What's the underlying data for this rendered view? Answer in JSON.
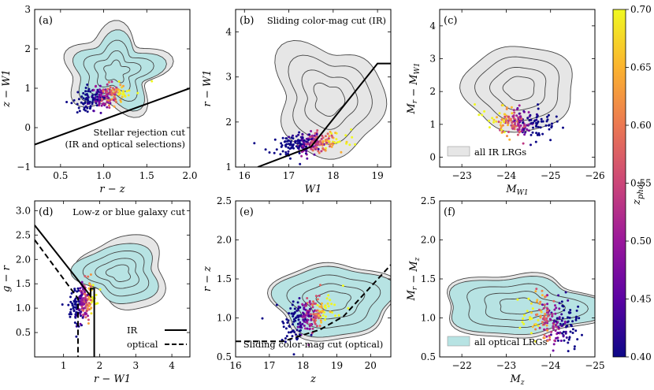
{
  "figure": {
    "colorbar": {
      "label": "z_phot",
      "label_main": "z",
      "label_sub": "phot",
      "range": [
        0.4,
        0.7
      ],
      "ticks": [
        "0.40",
        "0.45",
        "0.50",
        "0.55",
        "0.60",
        "0.65",
        "0.70"
      ],
      "colormap": "plasma",
      "stops": [
        "#0d0887",
        "#5b02a3",
        "#9a179b",
        "#cb4678",
        "#eb7852",
        "#fbb32f",
        "#f0f921"
      ]
    },
    "colors": {
      "ir_fill": "#e6e6e6",
      "optical_fill": "#b7e3e3",
      "contour": "#444444"
    }
  },
  "chart_data": [
    {
      "id": "a",
      "type": "scatter",
      "tag": "(a)",
      "xlabel": "r − z",
      "ylabel": "z − W1",
      "xlim": [
        0.2,
        2.0
      ],
      "ylim": [
        -1,
        3
      ],
      "xticks": [
        "0.5",
        "1.0",
        "1.5",
        "2.0"
      ],
      "yticks": [
        "−1",
        "0",
        "1",
        "2",
        "3"
      ],
      "annotation": [
        "Stellar rejection cut",
        "(IR and optical selections)"
      ],
      "cut_lines": [
        {
          "name": "stellar-rejection",
          "style": "solid",
          "x": [
            0.2,
            2.0
          ],
          "y": [
            -0.43,
            1.0
          ]
        }
      ],
      "ir_region": {
        "cx": 1.12,
        "cy": 1.45,
        "rx": 0.55,
        "ry": 1.05
      },
      "optical_region": {
        "cx": 1.14,
        "cy": 1.42,
        "rx": 0.47,
        "ry": 0.88
      },
      "points": {
        "n": 220,
        "cx": 1.0,
        "cy": 0.78,
        "sx": 0.16,
        "sy": 0.15,
        "xslope": 0.45,
        "yslope": 0.75,
        "zslope": 0.55
      }
    },
    {
      "id": "b",
      "type": "scatter",
      "tag": "(b)",
      "xlabel": "W1",
      "ylabel": "r − W1",
      "xlim": [
        15.8,
        19.3
      ],
      "ylim": [
        1.0,
        4.5
      ],
      "xticks": [
        "16",
        "17",
        "18",
        "19"
      ],
      "yticks": [
        "1",
        "2",
        "3",
        "4"
      ],
      "annotation": [
        "Sliding color-mag cut (IR)"
      ],
      "cut_lines": [
        {
          "name": "sliding-ir",
          "style": "solid",
          "x": [
            16.3,
            17.5,
            19.0,
            19.3
          ],
          "y": [
            1.0,
            1.45,
            3.3,
            3.3
          ]
        }
      ],
      "ir_region": {
        "cx": 17.9,
        "cy": 2.5,
        "rx": 1.25,
        "ry": 1.2
      },
      "optical_region": null,
      "points": {
        "n": 240,
        "cx": 17.5,
        "cy": 1.52,
        "sx": 0.38,
        "sy": 0.12,
        "xslope": 0.5,
        "yslope": 0.5,
        "zslope": 0.5
      }
    },
    {
      "id": "c",
      "type": "scatter",
      "tag": "(c)",
      "xlabel": "M_W1",
      "ylabel": "M_r − M_W1",
      "xlim": [
        -22.5,
        -26.0
      ],
      "ylim": [
        -0.3,
        4.5
      ],
      "xticks": [
        "−23",
        "−24",
        "−25",
        "−26"
      ],
      "yticks": [
        "0",
        "1",
        "2",
        "3",
        "4"
      ],
      "legend": "all IR LRGs",
      "cut_lines": [],
      "ir_region": {
        "cx": -24.3,
        "cy": 2.1,
        "rx": 1.25,
        "ry": 1.3
      },
      "optical_region": null,
      "points": {
        "n": 200,
        "cx": -24.3,
        "cy": 1.05,
        "sx": 0.35,
        "sy": 0.22,
        "xslope": 0.65,
        "yslope": 0.5,
        "zslope": 0.5
      }
    },
    {
      "id": "d",
      "type": "scatter",
      "tag": "(d)",
      "xlabel": "r − W1",
      "ylabel": "g − r",
      "xlim": [
        0.2,
        4.5
      ],
      "ylim": [
        0.0,
        3.2
      ],
      "xticks": [
        "1",
        "2",
        "3",
        "4"
      ],
      "yticks": [
        "0.5",
        "1.0",
        "1.5",
        "2.0",
        "2.5",
        "3.0"
      ],
      "annotation": [
        "Low-z or blue galaxy cut"
      ],
      "legend": [
        {
          "label": "IR",
          "style": "solid"
        },
        {
          "label": "optical",
          "style": "dashed"
        }
      ],
      "cut_lines": [
        {
          "name": "low-z-ir",
          "style": "solid",
          "x": [
            0.2,
            1.75,
            1.75,
            1.85,
            1.85
          ],
          "y": [
            2.7,
            1.25,
            1.4,
            1.4,
            0.0
          ]
        },
        {
          "name": "low-z-optical",
          "style": "dashed",
          "x": [
            0.2,
            1.4,
            1.4
          ],
          "y": [
            2.4,
            1.2,
            0.0
          ]
        }
      ],
      "ir_region": {
        "cx": 2.7,
        "cy": 1.75,
        "rx": 1.15,
        "ry": 0.75
      },
      "optical_region": {
        "cx": 2.55,
        "cy": 1.72,
        "rx": 1.1,
        "ry": 0.6
      },
      "points": {
        "n": 200,
        "cx": 1.55,
        "cy": 1.12,
        "sx": 0.18,
        "sy": 0.22,
        "xslope": 0.5,
        "yslope": 0.7,
        "zslope": 0.5
      }
    },
    {
      "id": "e",
      "type": "scatter",
      "tag": "(e)",
      "xlabel": "z",
      "ylabel": "r − z",
      "xlim": [
        16.0,
        20.6
      ],
      "ylim": [
        0.5,
        2.5
      ],
      "xticks": [
        "16",
        "17",
        "18",
        "19",
        "20"
      ],
      "yticks": [
        "0.5",
        "1.0",
        "1.5",
        "2.0",
        "2.5"
      ],
      "annotation": [
        "Sliding color-mag cut (optical)"
      ],
      "cut_lines": [
        {
          "name": "sliding-optical",
          "style": "dashed",
          "x": [
            16.0,
            17.4,
            18.5,
            19.2,
            20.6
          ],
          "y": [
            0.7,
            0.7,
            0.85,
            1.02,
            1.68
          ]
        }
      ],
      "ir_region": {
        "cx": 18.9,
        "cy": 1.22,
        "rx": 1.8,
        "ry": 0.5
      },
      "optical_region": {
        "cx": 18.9,
        "cy": 1.22,
        "rx": 1.7,
        "ry": 0.45
      },
      "points": {
        "n": 220,
        "cx": 18.15,
        "cy": 1.02,
        "sx": 0.35,
        "sy": 0.13,
        "xslope": 0.5,
        "yslope": 0.55,
        "zslope": 0.5
      }
    },
    {
      "id": "f",
      "type": "scatter",
      "tag": "(f)",
      "xlabel": "M_z",
      "ylabel": "M_r − M_z",
      "xlim": [
        -21.5,
        -25.0
      ],
      "ylim": [
        0.5,
        2.5
      ],
      "xticks": [
        "−22",
        "−23",
        "−24",
        "−25"
      ],
      "yticks": [
        "0.5",
        "1.0",
        "1.5",
        "2.0",
        "2.5"
      ],
      "legend": "all optical LRGs",
      "cut_lines": [],
      "ir_region": {
        "cx": -23.3,
        "cy": 1.15,
        "rx": 1.6,
        "ry": 0.45
      },
      "optical_region": {
        "cx": -23.3,
        "cy": 1.15,
        "rx": 1.55,
        "ry": 0.4
      },
      "points": {
        "n": 200,
        "cx": -24.05,
        "cy": 0.98,
        "sx": 0.3,
        "sy": 0.15,
        "xslope": 0.5,
        "yslope": 0.55,
        "zslope": 0.5
      }
    }
  ]
}
